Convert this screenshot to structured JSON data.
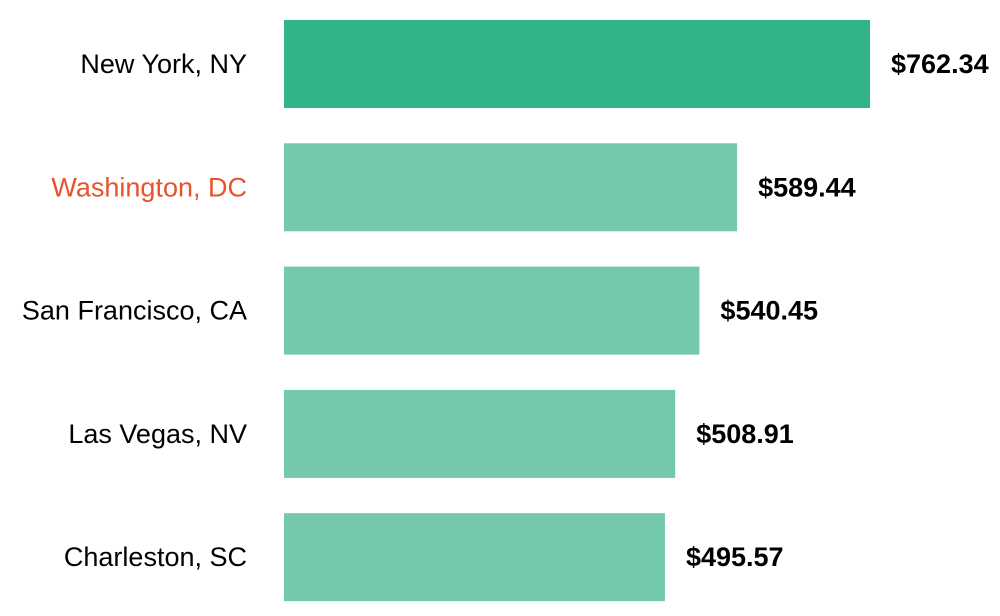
{
  "chart_data": {
    "type": "bar",
    "orientation": "horizontal",
    "categories": [
      "New York, NY",
      "Washington, DC",
      "San Francisco, CA",
      "Las Vegas, NV",
      "Charleston, SC"
    ],
    "values": [
      762.34,
      589.44,
      540.45,
      508.91,
      495.57
    ],
    "value_labels": [
      "$762.34",
      "$589.44",
      "$540.45",
      "$508.91",
      "$495.57"
    ],
    "xlim": [
      0,
      762.34
    ],
    "grid": false,
    "legend": "none",
    "highlight_bar_index": 0,
    "highlight_label_index": 1
  },
  "colors": {
    "bar_highlight": "#32b389",
    "bar_default": "#73c8ad",
    "label_default": "#000000",
    "label_highlight": "#e8522d"
  }
}
